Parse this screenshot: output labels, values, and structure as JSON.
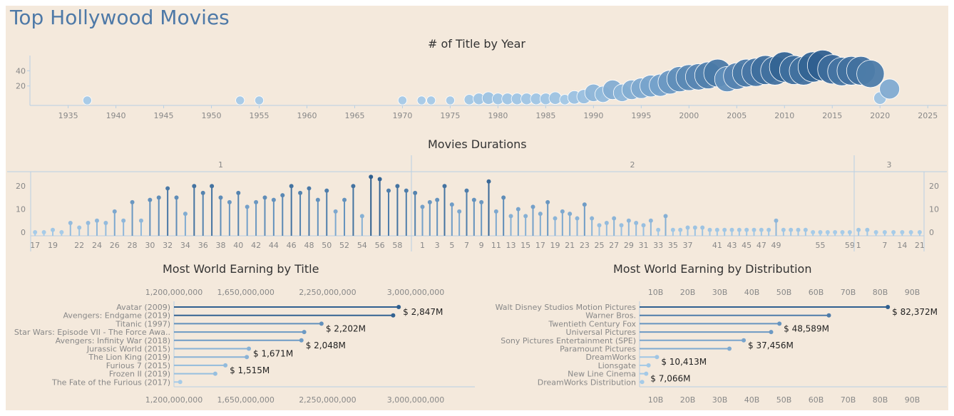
{
  "dashboard": {
    "title": "Top Hollywood Movies"
  },
  "palette": {
    "background": "#f4e9dc",
    "axis": "#b9cfe3",
    "light": "#a6cbe8",
    "mid": "#6f9cc6",
    "dark": "#2f5f8f",
    "label": "#888888",
    "text": "#222222",
    "title": "#4e79a7"
  },
  "chart_data": [
    {
      "id": "title-by-year",
      "type": "scatter",
      "title": "# of Title by Year",
      "x_ticks": [
        1935,
        1940,
        1945,
        1950,
        1955,
        1960,
        1965,
        1970,
        1975,
        1980,
        1985,
        1990,
        1995,
        2000,
        2005,
        2010,
        2015,
        2020,
        2025
      ],
      "y_ticks": [
        20,
        40
      ],
      "xlim": [
        1931,
        2027
      ],
      "ylim": [
        0,
        60
      ],
      "x": [
        1937,
        1953,
        1955,
        1970,
        1972,
        1973,
        1975,
        1977,
        1978,
        1979,
        1980,
        1981,
        1982,
        1983,
        1984,
        1985,
        1986,
        1987,
        1988,
        1989,
        1990,
        1991,
        1992,
        1993,
        1994,
        1995,
        1996,
        1997,
        1998,
        1999,
        2000,
        2001,
        2002,
        2003,
        2004,
        2005,
        2006,
        2007,
        2008,
        2009,
        2010,
        2011,
        2012,
        2013,
        2014,
        2015,
        2016,
        2017,
        2018,
        2019,
        2020,
        2021
      ],
      "y": [
        1,
        1,
        1,
        1,
        1,
        1,
        1,
        2,
        3,
        4,
        3,
        3,
        3,
        3,
        3,
        3,
        4,
        2,
        5,
        6,
        11,
        9,
        15,
        11,
        15,
        17,
        20,
        21,
        25,
        29,
        31,
        32,
        34,
        37,
        29,
        33,
        37,
        38,
        41,
        40,
        45,
        41,
        40,
        45,
        47,
        42,
        39,
        40,
        40,
        36,
        4,
        16
      ]
    },
    {
      "id": "movie-durations",
      "type": "bar",
      "title": "Movies Durations",
      "panels": [
        {
          "label": "1",
          "minutes": [
            17,
            18,
            19,
            20,
            21,
            22,
            23,
            24,
            25,
            26,
            27,
            28,
            29,
            30,
            31,
            32,
            33,
            34,
            35,
            36,
            37,
            38,
            39,
            40,
            41,
            42,
            43,
            44,
            45,
            46,
            47,
            48,
            49,
            50,
            51,
            52,
            53,
            54,
            55,
            56,
            57,
            58,
            59
          ],
          "values": [
            0,
            0,
            1,
            0,
            4,
            2,
            4,
            5,
            4,
            9,
            5,
            13,
            5,
            14,
            15,
            19,
            15,
            8,
            20,
            17,
            20,
            15,
            13,
            17,
            11,
            13,
            15,
            14,
            16,
            20,
            17,
            19,
            14,
            18,
            9,
            14,
            20,
            7,
            24,
            23,
            18,
            20,
            18
          ],
          "tick_labels": [
            "17",
            "19",
            "22",
            "24",
            "26",
            "28",
            "30",
            "32",
            "34",
            "36",
            "38",
            "40",
            "42",
            "44",
            "46",
            "48",
            "50",
            "52",
            "54",
            "56",
            "58"
          ]
        },
        {
          "label": "2",
          "minutes": [
            0,
            1,
            2,
            3,
            4,
            5,
            6,
            7,
            8,
            9,
            10,
            11,
            12,
            13,
            14,
            15,
            16,
            17,
            18,
            19,
            20,
            21,
            22,
            23,
            24,
            25,
            26,
            27,
            28,
            29,
            30,
            31,
            32,
            33,
            34,
            35,
            36,
            37,
            38,
            39,
            40,
            41,
            42,
            43,
            44,
            45,
            46,
            47,
            48,
            49,
            50,
            51,
            52,
            53,
            54,
            55,
            56,
            57,
            58,
            59
          ],
          "values": [
            17,
            11,
            13,
            14,
            20,
            12,
            9,
            18,
            14,
            13,
            22,
            9,
            15,
            7,
            10,
            7,
            11,
            8,
            13,
            6,
            9,
            8,
            6,
            12,
            6,
            3,
            4,
            6,
            3,
            5,
            4,
            3,
            5,
            1,
            7,
            1,
            1,
            2,
            2,
            2,
            1,
            1,
            1,
            1,
            1,
            1,
            1,
            1,
            1,
            5,
            1,
            1,
            1,
            1,
            0,
            0,
            0,
            0,
            0,
            0
          ],
          "tick_labels": [
            "1",
            "3",
            "5",
            "7",
            "9",
            "11",
            "13",
            "15",
            "17",
            "19",
            "21",
            "23",
            "25",
            "27",
            "29",
            "31",
            "33",
            "35",
            "37",
            "41",
            "43",
            "45",
            "47",
            "49",
            "55",
            "59"
          ]
        },
        {
          "label": "3",
          "minutes": [
            1,
            3,
            5,
            7,
            10,
            14,
            17,
            21
          ],
          "values": [
            1,
            1,
            0,
            0,
            0,
            0,
            0,
            0
          ],
          "tick_labels": [
            "1",
            "7",
            "14",
            "21"
          ]
        }
      ],
      "y_ticks": [
        0,
        10,
        20
      ],
      "ylim": [
        0,
        25
      ]
    },
    {
      "id": "earning-by-title",
      "type": "bar",
      "title": "Most World Earning by Title",
      "categories": [
        "Avatar (2009)",
        "Avengers: Endgame (2019)",
        "Titanic (1997)",
        "Star Wars: Episode VII - The Force Awa..",
        "Avengers: Infinity War (2018)",
        "Jurassic World (2015)",
        "The Lion King (2019)",
        "Furious 7 (2015)",
        "Frozen II (2019)",
        "The Fate of the Furious (2017)"
      ],
      "values": [
        2847,
        2798,
        2202,
        2069,
        2048,
        1671,
        1657,
        1515,
        1450,
        1236
      ],
      "unit": "millions",
      "data_labels": [
        "$ 2,847M",
        "",
        "$ 2,202M",
        "",
        "$ 2,048M",
        "$ 1,671M",
        "",
        "$ 1,515M",
        "",
        ""
      ],
      "x_ticks": [
        1200,
        1650,
        2250,
        3000
      ],
      "x_tick_labels": [
        "1,200,000,000",
        "1,650,000,000",
        "2,250,000,000",
        "3,000,000,000"
      ],
      "xlim": [
        1200,
        3000
      ],
      "scale": "sqrt"
    },
    {
      "id": "earning-by-distribution",
      "type": "bar",
      "title": "Most World Earning by Distribution",
      "categories": [
        "Walt Disney Studios Motion Pictures",
        "Warner Bros.",
        "Twentieth Century Fox",
        "Universal Pictures",
        "Sony Pictures Entertainment (SPE)",
        "Paramount Pictures",
        "DreamWorks",
        "Lionsgate",
        "New Line Cinema",
        "DreamWorks Distribution"
      ],
      "values": [
        82372,
        64000,
        48589,
        46000,
        37456,
        33000,
        10413,
        7800,
        7066,
        5800
      ],
      "unit": "millions",
      "data_labels": [
        "$ 82,372M",
        "",
        "$ 48,589M",
        "",
        "$ 37,456M",
        "",
        "$ 10,413M",
        "",
        "$ 7,066M",
        ""
      ],
      "x_ticks": [
        10,
        20,
        30,
        40,
        50,
        60,
        70,
        80,
        90
      ],
      "x_tick_labels": [
        "10B",
        "20B",
        "30B",
        "40B",
        "50B",
        "60B",
        "70B",
        "80B",
        "90B"
      ],
      "xlim": [
        5,
        95
      ]
    }
  ]
}
